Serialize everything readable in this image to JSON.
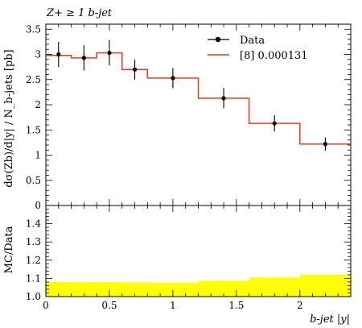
{
  "chart_data": {
    "type": "line",
    "title": "Z+ ≥ 1 b-jet",
    "xlabel": "b-jet |y|",
    "ylabel": "dσ(Zb)/d|y| / N_b-jets [pb]",
    "ratio_ylabel": "MC/Data",
    "xlim": [
      0,
      2.4
    ],
    "ylim": [
      0,
      3.6
    ],
    "ratio_ylim": [
      1.0,
      1.5
    ],
    "x_ticks": [
      "0",
      "0.5",
      "1",
      "1.5",
      "2"
    ],
    "y_ticks": [
      "0",
      "0.5",
      "1",
      "1.5",
      "2",
      "2.5",
      "3",
      "3.5"
    ],
    "ratio_y_ticks": [
      "1.0",
      "1.1",
      "1.2",
      "1.3",
      "1.4"
    ],
    "legend_position": "top-right",
    "colors": {
      "data": "#000000",
      "mc": "#e8391f",
      "band": "#ffff00"
    },
    "series": [
      {
        "name": "Data",
        "style": "points",
        "x": [
          0.1,
          0.3,
          0.5,
          0.7,
          1.0,
          1.4,
          1.8,
          2.2
        ],
        "y": [
          3.0,
          2.93,
          3.03,
          2.7,
          2.53,
          2.13,
          1.63,
          1.22
        ],
        "yerr": [
          0.25,
          0.25,
          0.25,
          0.2,
          0.2,
          0.2,
          0.16,
          0.13
        ]
      },
      {
        "name": "[8] 0.000131",
        "style": "step",
        "bin_edges": [
          0,
          0.2,
          0.4,
          0.6,
          0.8,
          1.2,
          1.6,
          2.0,
          2.4
        ],
        "y": [
          2.98,
          2.93,
          3.03,
          2.7,
          2.53,
          2.13,
          1.63,
          1.22
        ]
      }
    ],
    "ratio_band": {
      "bin_edges": [
        0,
        0.2,
        0.4,
        0.6,
        0.8,
        1.2,
        1.6,
        2.0,
        2.4
      ],
      "upper": [
        1.08,
        1.08,
        1.08,
        1.078,
        1.076,
        1.087,
        1.105,
        1.12
      ],
      "lower": [
        1.0,
        1.0,
        1.0,
        1.0,
        1.0,
        1.0,
        1.0,
        1.0
      ]
    }
  }
}
